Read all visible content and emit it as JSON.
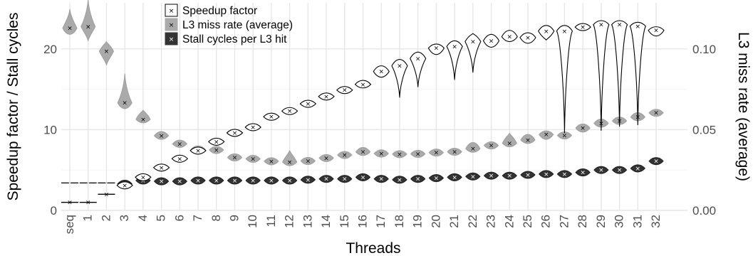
{
  "chart_data": {
    "type": "violin",
    "xlabel": "Threads",
    "ylabel_left": "Speedup factor / Stall cycles",
    "ylabel_right": "L3 miss rate (average)",
    "categories": [
      "seq",
      "1",
      "2",
      "3",
      "4",
      "5",
      "6",
      "7",
      "8",
      "9",
      "10",
      "11",
      "12",
      "13",
      "14",
      "15",
      "16",
      "17",
      "18",
      "19",
      "20",
      "21",
      "22",
      "23",
      "24",
      "25",
      "26",
      "27",
      "28",
      "29",
      "30",
      "31",
      "32"
    ],
    "ylim_left": [
      0,
      25.7
    ],
    "yticks_left": [
      {
        "value": 0,
        "label": "0"
      },
      {
        "value": 10,
        "label": "10"
      },
      {
        "value": 20,
        "label": "20"
      }
    ],
    "ylim_right": [
      0,
      0.1285
    ],
    "yticks_right": [
      {
        "value": 0.0,
        "label": "0.00"
      },
      {
        "value": 0.05,
        "label": "0.05"
      },
      {
        "value": 0.1,
        "label": "0.10"
      }
    ],
    "legend_position": "top-center",
    "legend": [
      {
        "name": "Speedup factor",
        "fill": "#ffffff",
        "stroke": "#000000",
        "marker": "#000000"
      },
      {
        "name": "L3 miss rate (average)",
        "fill": "#aaaaaa",
        "stroke": "#aaaaaa",
        "marker": "#000000"
      },
      {
        "name": "Stall cycles per L3 hit",
        "fill": "#333333",
        "stroke": "#333333",
        "marker": "#ffffff"
      }
    ],
    "series": [
      {
        "name": "Speedup factor",
        "axis": "left",
        "mean": [
          1,
          1,
          2,
          3.1,
          4.1,
          5.3,
          6.4,
          7.4,
          8.5,
          9.6,
          10.3,
          11.6,
          12.3,
          13.2,
          14.1,
          14.9,
          15.6,
          17.2,
          17.9,
          18.8,
          20.1,
          20.3,
          20.9,
          21.0,
          21.5,
          21.4,
          22.2,
          22.2,
          22.7,
          23.0,
          23.0,
          22.8,
          22.3
        ],
        "low": [
          1,
          1,
          2,
          3.0,
          4.0,
          5.2,
          6.3,
          7.2,
          8.3,
          9.4,
          10.1,
          11.3,
          12.0,
          12.9,
          13.8,
          14.5,
          15.2,
          16.5,
          14.0,
          15.3,
          19.3,
          16.2,
          17.1,
          20.2,
          20.9,
          20.7,
          21.1,
          9.6,
          22.3,
          9.9,
          10.4,
          10.6,
          21.6
        ],
        "high": [
          1,
          1,
          2,
          3.2,
          4.2,
          5.4,
          6.6,
          7.7,
          8.7,
          9.8,
          10.5,
          11.9,
          12.6,
          13.6,
          14.5,
          15.3,
          16.1,
          17.9,
          18.7,
          19.6,
          20.6,
          21.0,
          21.9,
          21.8,
          22.3,
          22.0,
          22.9,
          22.9,
          23.1,
          23.5,
          23.5,
          23.3,
          22.7
        ]
      },
      {
        "name": "L3 miss rate (average)",
        "axis": "right",
        "mean": [
          0.1128,
          0.1138,
          0.0985,
          0.0666,
          0.0564,
          0.0462,
          0.0412,
          0.0377,
          0.0374,
          0.0328,
          0.0319,
          0.0304,
          0.0299,
          0.0306,
          0.0324,
          0.0343,
          0.0362,
          0.0352,
          0.0348,
          0.035,
          0.0358,
          0.0363,
          0.0382,
          0.0402,
          0.0416,
          0.0436,
          0.047,
          0.0464,
          0.051,
          0.0539,
          0.0554,
          0.0578,
          0.0604
        ],
        "low": [
          0.109,
          0.105,
          0.09,
          0.063,
          0.0545,
          0.044,
          0.039,
          0.036,
          0.036,
          0.031,
          0.03,
          0.0285,
          0.028,
          0.0288,
          0.0305,
          0.0325,
          0.034,
          0.0333,
          0.033,
          0.033,
          0.034,
          0.0345,
          0.0362,
          0.0385,
          0.0395,
          0.0415,
          0.044,
          0.0445,
          0.0485,
          0.0515,
          0.0535,
          0.0555,
          0.0585
        ],
        "high": [
          0.1245,
          0.1305,
          0.1045,
          0.0845,
          0.062,
          0.0488,
          0.0435,
          0.0395,
          0.039,
          0.0345,
          0.034,
          0.0325,
          0.037,
          0.0325,
          0.0345,
          0.0365,
          0.039,
          0.0375,
          0.0368,
          0.037,
          0.0378,
          0.0385,
          0.042,
          0.0425,
          0.0478,
          0.047,
          0.049,
          0.0485,
          0.0535,
          0.0565,
          0.0578,
          0.0605,
          0.062
        ]
      },
      {
        "name": "Stall cycles per L3 hit",
        "axis": "left",
        "mean": [
          3.4,
          3.4,
          3.4,
          3.3,
          3.7,
          3.6,
          3.6,
          3.7,
          3.7,
          3.7,
          3.7,
          3.7,
          3.7,
          3.8,
          3.9,
          3.9,
          4.1,
          3.9,
          3.8,
          3.9,
          4.0,
          4.1,
          4.2,
          4.3,
          4.3,
          4.4,
          4.5,
          4.5,
          4.7,
          5.0,
          5.0,
          5.2,
          6.1
        ],
        "low": [
          3.4,
          3.4,
          3.4,
          3.1,
          3.6,
          3.5,
          3.5,
          3.5,
          3.6,
          3.5,
          3.4,
          3.4,
          3.3,
          3.5,
          3.6,
          3.6,
          3.7,
          3.6,
          3.5,
          3.6,
          3.7,
          3.8,
          3.9,
          4.0,
          4.0,
          4.1,
          4.3,
          4.3,
          4.5,
          4.8,
          4.8,
          5.0,
          5.9
        ],
        "high": [
          3.4,
          3.4,
          3.4,
          3.5,
          3.8,
          3.7,
          3.7,
          3.9,
          3.9,
          3.9,
          3.9,
          3.9,
          3.9,
          4.0,
          4.2,
          4.2,
          4.4,
          4.1,
          4.1,
          4.2,
          4.2,
          4.3,
          4.4,
          4.5,
          4.6,
          4.7,
          4.7,
          4.7,
          4.9,
          5.2,
          5.2,
          5.4,
          6.2
        ]
      }
    ]
  }
}
